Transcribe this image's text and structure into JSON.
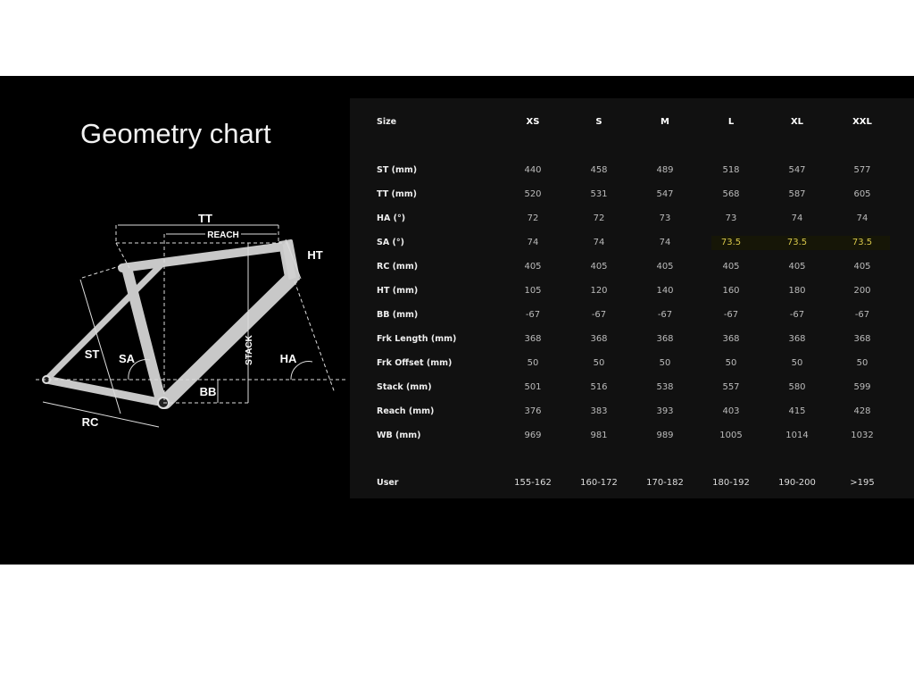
{
  "title": "Geometry chart",
  "diagram_labels": {
    "tt": "TT",
    "reach": "REACH",
    "ht": "HT",
    "st": "ST",
    "sa": "SA",
    "stack": "STACK",
    "ha": "HA",
    "bb": "BB",
    "rc": "RC"
  },
  "table": {
    "header": {
      "label": "Size",
      "sizes": [
        "XS",
        "S",
        "M",
        "L",
        "XL",
        "XXL"
      ]
    },
    "rows": [
      {
        "label": "ST (mm)",
        "values": [
          "440",
          "458",
          "489",
          "518",
          "547",
          "577"
        ]
      },
      {
        "label": "TT (mm)",
        "values": [
          "520",
          "531",
          "547",
          "568",
          "587",
          "605"
        ]
      },
      {
        "label": "HA (°)",
        "values": [
          "72",
          "72",
          "73",
          "73",
          "74",
          "74"
        ]
      },
      {
        "label": "SA (°)",
        "values": [
          "74",
          "74",
          "74",
          "73.5",
          "73.5",
          "73.5"
        ]
      },
      {
        "label": "RC (mm)",
        "values": [
          "405",
          "405",
          "405",
          "405",
          "405",
          "405"
        ]
      },
      {
        "label": "HT (mm)",
        "values": [
          "105",
          "120",
          "140",
          "160",
          "180",
          "200"
        ]
      },
      {
        "label": "BB (mm)",
        "values": [
          "-67",
          "-67",
          "-67",
          "-67",
          "-67",
          "-67"
        ]
      },
      {
        "label": "Frk Length (mm)",
        "values": [
          "368",
          "368",
          "368",
          "368",
          "368",
          "368"
        ]
      },
      {
        "label": "Frk Offset (mm)",
        "values": [
          "50",
          "50",
          "50",
          "50",
          "50",
          "50"
        ]
      },
      {
        "label": "Stack (mm)",
        "values": [
          "501",
          "516",
          "538",
          "557",
          "580",
          "599"
        ]
      },
      {
        "label": "Reach (mm)",
        "values": [
          "376",
          "383",
          "393",
          "403",
          "415",
          "428"
        ]
      },
      {
        "label": "WB (mm)",
        "values": [
          "969",
          "981",
          "989",
          "1005",
          "1014",
          "1032"
        ]
      }
    ],
    "user": {
      "label": "User",
      "values": [
        "155-162",
        "160-172",
        "170-182",
        "180-192",
        "190-200",
        ">195"
      ]
    },
    "highlight_color": "#d8c84a"
  }
}
